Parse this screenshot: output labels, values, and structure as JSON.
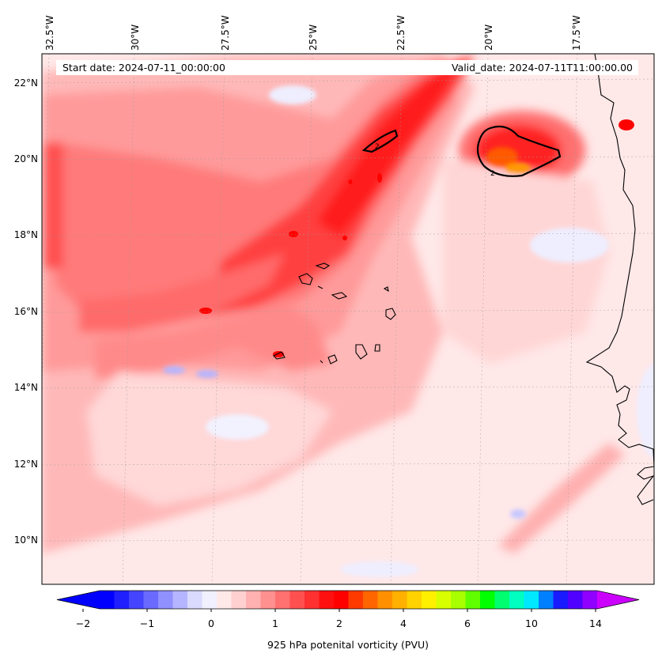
{
  "header": {
    "start_label": "Start date: 2024-07-11_00:00:00",
    "valid_label": "Valid_date: 2024-07-11T11:00:00.00"
  },
  "map": {
    "lon_labels": [
      "32.5°W",
      "30°W",
      "27.5°W",
      "25°W",
      "22.5°W",
      "20°W",
      "17.5°W"
    ],
    "lat_labels": [
      "22°N",
      "20°N",
      "18°N",
      "16°N",
      "14°N",
      "12°N",
      "10°N"
    ],
    "field": "potential vorticity at 925 hPa",
    "features": [
      "Cabo Verde islands",
      "West African coastline",
      "Canary-area PV maximum near 20°N 19°W"
    ]
  },
  "colorbar": {
    "title": "925 hPa potenital vorticity (PVU)",
    "tick_labels": [
      "−2",
      "−1",
      "0",
      "1",
      "2",
      "4",
      "6",
      "10",
      "14"
    ],
    "extend": "both",
    "colors": [
      "#0000ff",
      "#2020ff",
      "#4545ff",
      "#6a6aff",
      "#9090ff",
      "#b5b5ff",
      "#dadaff",
      "#f0f0ff",
      "#ffe8e8",
      "#ffd0d0",
      "#ffb0b0",
      "#ff9090",
      "#ff7070",
      "#ff5050",
      "#ff3030",
      "#ff1010",
      "#ff0000",
      "#ff3a00",
      "#ff6600",
      "#ff9000",
      "#ffb000",
      "#ffd200",
      "#fff000",
      "#d8ff00",
      "#a8ff00",
      "#60ff00",
      "#00ff00",
      "#00ff70",
      "#00ffc0",
      "#00e8ff",
      "#0080ff",
      "#1a1aff",
      "#5000ff",
      "#9000ff"
    ],
    "under_color": "#0000ff",
    "over_color": "#cc00ff"
  }
}
